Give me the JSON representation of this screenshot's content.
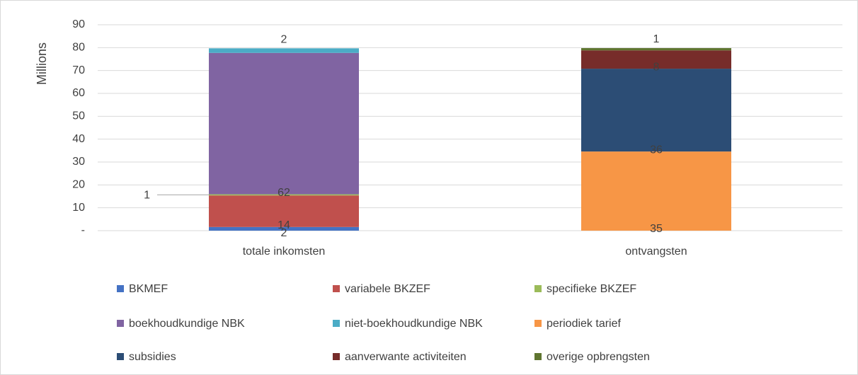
{
  "chart_data": {
    "type": "stacked_bar",
    "y_axis_label": "Millions",
    "categories": [
      "totale inkomsten",
      "ontvangsten"
    ],
    "ylim": [
      0,
      90
    ],
    "yticks": [
      {
        "value": 0,
        "label": "-"
      },
      10,
      20,
      30,
      40,
      50,
      60,
      70,
      80,
      90
    ],
    "grid": true,
    "legend": "bottom",
    "series": [
      {
        "name": "BKMEF",
        "color": "#4472c4",
        "values": [
          1.6,
          null
        ],
        "value_labels": [
          "2",
          null
        ]
      },
      {
        "name": "variabele BKZEF",
        "color": "#c0504d",
        "values": [
          13.8,
          null
        ],
        "value_labels": [
          "14",
          null
        ]
      },
      {
        "name": "specifieke BKZEF",
        "color": "#9bbb59",
        "values": [
          0.5,
          null
        ],
        "value_labels": [
          "1",
          null
        ]
      },
      {
        "name": "boekhoudkundige NBK",
        "color": "#8064a2",
        "values": [
          61.8,
          null
        ],
        "value_labels": [
          "62",
          null
        ]
      },
      {
        "name": "niet-boekhoudkundige NBK",
        "color": "#4bacc6",
        "values": [
          2.0,
          null
        ],
        "value_labels": [
          "2",
          null
        ]
      },
      {
        "name": "periodiek tarief",
        "color": "#f79646",
        "values": [
          null,
          34.6
        ],
        "value_labels": [
          null,
          "35"
        ]
      },
      {
        "name": "subsidies",
        "color": "#2c4d75",
        "values": [
          null,
          36.2
        ],
        "value_labels": [
          null,
          "36"
        ]
      },
      {
        "name": "aanverwante activiteiten",
        "color": "#772c2a",
        "values": [
          null,
          8.0
        ],
        "value_labels": [
          null,
          "8"
        ]
      },
      {
        "name": "overige opbrengsten",
        "color": "#5f7530",
        "values": [
          null,
          1.0
        ],
        "value_labels": [
          null,
          "1"
        ]
      }
    ]
  }
}
